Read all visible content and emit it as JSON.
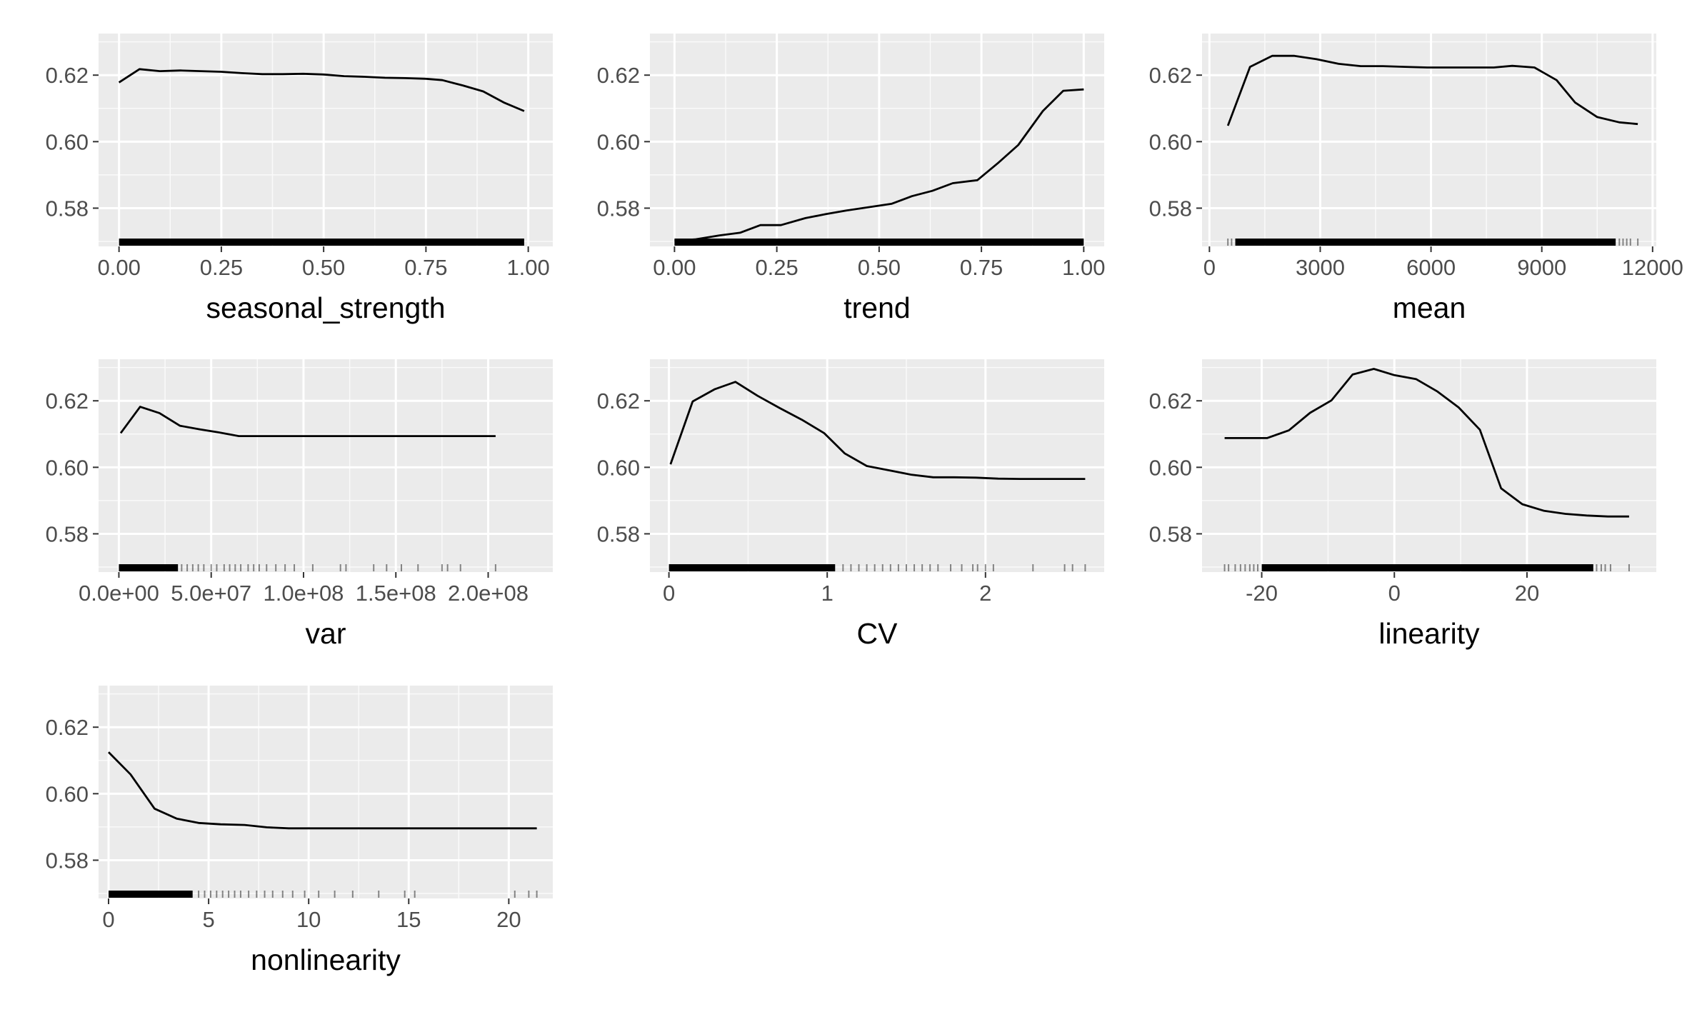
{
  "chart_data": [
    {
      "type": "line",
      "xlabel": "seasonal_strength",
      "xlim": [
        -0.05,
        1.06
      ],
      "ylim": [
        0.5685,
        0.6325
      ],
      "xticks": [
        0,
        0.25,
        0.5,
        0.75,
        1
      ],
      "xtick_labels": [
        "0.00",
        "0.25",
        "0.50",
        "0.75",
        "1.00"
      ],
      "yticks": [
        0.58,
        0.6,
        0.62
      ],
      "ytick_labels": [
        "0.58",
        "0.60",
        "0.62"
      ],
      "series": [
        {
          "x": [
            0,
            0.05,
            0.1,
            0.15,
            0.2,
            0.25,
            0.3,
            0.35,
            0.4,
            0.45,
            0.5,
            0.55,
            0.6,
            0.65,
            0.7,
            0.75,
            0.79,
            0.84,
            0.89,
            0.94,
            0.99
          ],
          "y": [
            0.6178,
            0.6218,
            0.6212,
            0.6214,
            0.6212,
            0.621,
            0.6206,
            0.6203,
            0.6203,
            0.6204,
            0.6202,
            0.6197,
            0.6195,
            0.6192,
            0.6191,
            0.6189,
            0.6185,
            0.6169,
            0.6151,
            0.6118,
            0.6092
          ]
        }
      ],
      "rug": {
        "min": 0,
        "max": 0.99,
        "dense": [
          [
            0,
            0.99
          ]
        ],
        "sparse": []
      }
    },
    {
      "type": "line",
      "xlabel": "trend",
      "xlim": [
        -0.06,
        1.05
      ],
      "ylim": [
        0.5685,
        0.6325
      ],
      "xticks": [
        0,
        0.25,
        0.5,
        0.75,
        1
      ],
      "xtick_labels": [
        "0.00",
        "0.25",
        "0.50",
        "0.75",
        "1.00"
      ],
      "yticks": [
        0.58,
        0.6,
        0.62
      ],
      "ytick_labels": [
        "0.58",
        "0.60",
        "0.62"
      ],
      "series": [
        {
          "x": [
            0,
            0.05,
            0.11,
            0.16,
            0.21,
            0.26,
            0.32,
            0.37,
            0.42,
            0.47,
            0.53,
            0.58,
            0.63,
            0.68,
            0.74,
            0.79,
            0.84,
            0.9,
            0.95,
            1
          ],
          "y": [
            0.5702,
            0.5706,
            0.5718,
            0.5726,
            0.5749,
            0.5749,
            0.577,
            0.5782,
            0.5793,
            0.5802,
            0.5813,
            0.5836,
            0.5852,
            0.5875,
            0.5884,
            0.5935,
            0.599,
            0.6092,
            0.6153,
            0.6157
          ]
        }
      ],
      "rug": {
        "min": 0,
        "max": 1,
        "dense": [
          [
            0,
            1
          ]
        ],
        "sparse": []
      }
    },
    {
      "type": "line",
      "xlabel": "mean",
      "xlim": [
        -200,
        12100
      ],
      "ylim": [
        0.5685,
        0.6325
      ],
      "xticks": [
        0,
        3000,
        6000,
        9000,
        12000
      ],
      "xtick_labels": [
        "0",
        "3000",
        "6000",
        "9000",
        "12000"
      ],
      "yticks": [
        0.58,
        0.6,
        0.62
      ],
      "ytick_labels": [
        "0.58",
        "0.60",
        "0.62"
      ],
      "series": [
        {
          "x": [
            500,
            1100,
            1700,
            2300,
            2900,
            3500,
            4100,
            4700,
            5300,
            5900,
            6500,
            7100,
            7700,
            8200,
            8800,
            9400,
            9900,
            10500,
            11100,
            11600
          ],
          "y": [
            0.6048,
            0.6225,
            0.6258,
            0.6258,
            0.6248,
            0.6234,
            0.6227,
            0.6227,
            0.6225,
            0.6223,
            0.6223,
            0.6223,
            0.6223,
            0.6228,
            0.6223,
            0.6185,
            0.6118,
            0.6074,
            0.6058,
            0.6053
          ]
        }
      ],
      "rug": {
        "min": 500,
        "max": 11600,
        "dense": [
          [
            700,
            11000
          ]
        ],
        "sparse": [
          500,
          600,
          11100,
          11200,
          11300,
          11400,
          11600
        ]
      }
    },
    {
      "type": "line",
      "xlabel": "var",
      "xlim": [
        -11000000.0,
        235000000.0
      ],
      "ylim": [
        0.5685,
        0.6325
      ],
      "xticks": [
        0,
        50000000.0,
        100000000.0,
        150000000.0,
        200000000.0
      ],
      "xtick_labels": [
        "0.0e+00",
        "5.0e+07",
        "1.0e+08",
        "1.5e+08",
        "2.0e+08"
      ],
      "yticks": [
        0.58,
        0.6,
        0.62
      ],
      "ytick_labels": [
        "0.58",
        "0.60",
        "0.62"
      ],
      "series": [
        {
          "x": [
            1000000.0,
            11500000.0,
            22000000.0,
            33000000.0,
            44000000.0,
            54000000.0,
            65000000.0,
            76000000.0,
            86000000.0,
            97000000.0,
            108000000.0,
            118000000.0,
            129000000.0,
            140000000.0,
            150000000.0,
            161000000.0,
            172000000.0,
            182000000.0,
            193000000.0,
            204000000.0
          ],
          "y": [
            0.6103,
            0.6182,
            0.6163,
            0.6125,
            0.6114,
            0.6105,
            0.6094,
            0.6094,
            0.6094,
            0.6094,
            0.6094,
            0.6094,
            0.6094,
            0.6094,
            0.6094,
            0.6094,
            0.6094,
            0.6094,
            0.6094,
            0.6094
          ]
        }
      ],
      "rug": {
        "min": 0,
        "max": 204000000.0,
        "dense": [
          [
            0,
            32000000.0
          ]
        ],
        "sparse": [
          34000000.0,
          37000000.0,
          40000000.0,
          43000000.0,
          46000000.0,
          50000000.0,
          53000000.0,
          57000000.0,
          60000000.0,
          63000000.0,
          66000000.0,
          70000000.0,
          73000000.0,
          76000000.0,
          80000000.0,
          85000000.0,
          90000000.0,
          95000000.0,
          105000000.0,
          120000000.0,
          123000000.0,
          138000000.0,
          145000000.0,
          153000000.0,
          162000000.0,
          175000000.0,
          178000000.0,
          185000000.0,
          204000000.0
        ]
      }
    },
    {
      "type": "line",
      "xlabel": "CV",
      "xlim": [
        -0.12,
        2.75
      ],
      "ylim": [
        0.5685,
        0.6325
      ],
      "xticks": [
        0,
        1,
        2
      ],
      "xtick_labels": [
        "0",
        "1",
        "2"
      ],
      "yticks": [
        0.58,
        0.6,
        0.62
      ],
      "ytick_labels": [
        "0.58",
        "0.60",
        "0.62"
      ],
      "series": [
        {
          "x": [
            0.01,
            0.15,
            0.29,
            0.42,
            0.56,
            0.7,
            0.84,
            0.98,
            1.11,
            1.25,
            1.39,
            1.53,
            1.67,
            1.8,
            1.94,
            2.08,
            2.22,
            2.36,
            2.49,
            2.63
          ],
          "y": [
            0.6009,
            0.6198,
            0.6235,
            0.6257,
            0.6215,
            0.6178,
            0.6143,
            0.6103,
            0.6042,
            0.6004,
            0.5991,
            0.5978,
            0.597,
            0.597,
            0.5969,
            0.5966,
            0.5965,
            0.5965,
            0.5965,
            0.5965
          ]
        }
      ],
      "rug": {
        "min": 0,
        "max": 2.63,
        "dense": [
          [
            0,
            1.05
          ]
        ],
        "sparse": [
          1.1,
          1.15,
          1.2,
          1.25,
          1.3,
          1.35,
          1.4,
          1.45,
          1.5,
          1.55,
          1.6,
          1.65,
          1.7,
          1.78,
          1.85,
          1.92,
          1.95,
          2.0,
          2.05,
          2.3,
          2.5,
          2.55,
          2.63
        ]
      }
    },
    {
      "type": "line",
      "xlabel": "linearity",
      "xlim": [
        -29,
        39.5
      ],
      "ylim": [
        0.5685,
        0.6325
      ],
      "xticks": [
        -20,
        0,
        20
      ],
      "xtick_labels": [
        "-20",
        "0",
        "20"
      ],
      "yticks": [
        0.58,
        0.6,
        0.62
      ],
      "ytick_labels": [
        "0.58",
        "0.60",
        "0.62"
      ],
      "series": [
        {
          "x": [
            -25.6,
            -22.4,
            -19.2,
            -15.9,
            -12.7,
            -9.5,
            -6.3,
            -3.1,
            0,
            3.3,
            6.5,
            9.7,
            12.9,
            16.1,
            19.3,
            22.6,
            25.8,
            29,
            32.2,
            35.4
          ],
          "y": [
            0.6088,
            0.6088,
            0.6088,
            0.6111,
            0.6164,
            0.6201,
            0.6279,
            0.6296,
            0.6277,
            0.6265,
            0.6228,
            0.618,
            0.6113,
            0.5937,
            0.5889,
            0.5869,
            0.586,
            0.5855,
            0.5852,
            0.5852
          ]
        }
      ],
      "rug": {
        "min": -25.6,
        "max": 35.4,
        "dense": [
          [
            -20,
            30
          ]
        ],
        "sparse": [
          -25.6,
          -25,
          -24,
          -23.2,
          -22.5,
          -21.8,
          -21.2,
          -20.6,
          30.5,
          31.2,
          31.8,
          32.6,
          35.4
        ]
      }
    },
    {
      "type": "line",
      "xlabel": "nonlinearity",
      "xlim": [
        -0.5,
        22.2
      ],
      "ylim": [
        0.5685,
        0.6325
      ],
      "xticks": [
        0,
        5,
        10,
        15,
        20
      ],
      "xtick_labels": [
        "0",
        "5",
        "10",
        "15",
        "20"
      ],
      "yticks": [
        0.58,
        0.6,
        0.62
      ],
      "ytick_labels": [
        "0.58",
        "0.60",
        "0.62"
      ],
      "series": [
        {
          "x": [
            0,
            1.1,
            2.3,
            3.4,
            4.5,
            5.6,
            6.8,
            7.9,
            9,
            10.1,
            11.3,
            12.4,
            13.5,
            14.7,
            15.8,
            16.9,
            18,
            19.2,
            20.3,
            21.4
          ],
          "y": [
            0.6125,
            0.6058,
            0.5955,
            0.5925,
            0.5912,
            0.5908,
            0.5906,
            0.5899,
            0.5896,
            0.5896,
            0.5896,
            0.5896,
            0.5896,
            0.5896,
            0.5896,
            0.5896,
            0.5896,
            0.5896,
            0.5896,
            0.5896
          ]
        }
      ],
      "rug": {
        "min": 0,
        "max": 21.4,
        "dense": [
          [
            0,
            4.2
          ]
        ],
        "sparse": [
          4.5,
          4.8,
          5.1,
          5.4,
          5.7,
          6,
          6.3,
          6.6,
          7,
          7.4,
          7.8,
          8.2,
          8.7,
          9.2,
          9.8,
          10.5,
          11.3,
          12.2,
          13.5,
          14.8,
          15.3,
          20.3,
          21,
          21.4
        ]
      }
    }
  ]
}
